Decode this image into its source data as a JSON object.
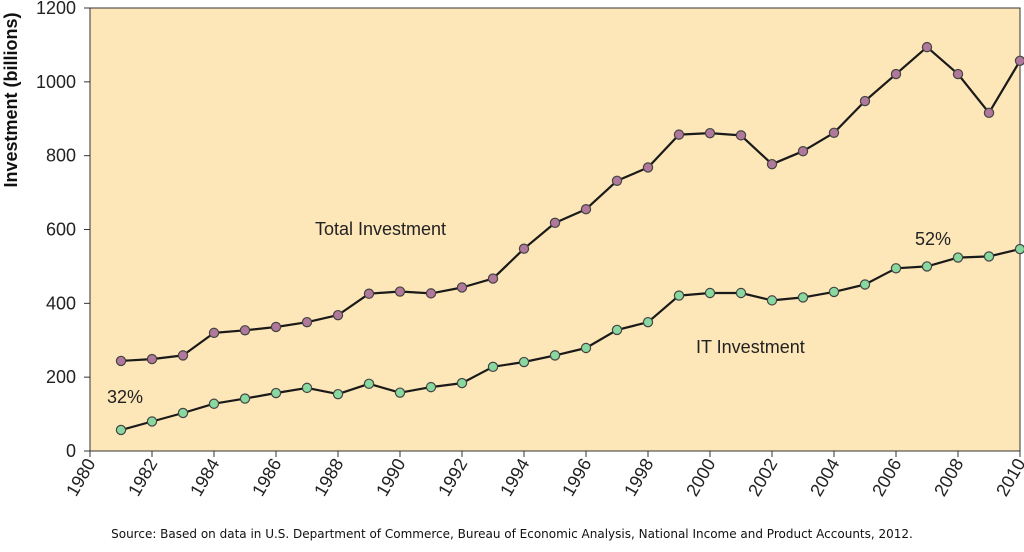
{
  "chart_data": {
    "type": "line",
    "ylabel": "Investment (billions)",
    "xlim": [
      1980,
      2010
    ],
    "ylim": [
      0,
      1200
    ],
    "x_ticks": [
      "1980",
      "1982",
      "1984",
      "1986",
      "1988",
      "1990",
      "1992",
      "1994",
      "1996",
      "1998",
      "2000",
      "2002",
      "2004",
      "2006",
      "2008",
      "2010"
    ],
    "y_ticks": [
      "0",
      "200",
      "400",
      "600",
      "800",
      "1000",
      "1200"
    ],
    "x": [
      1981,
      1982,
      1983,
      1984,
      1985,
      1986,
      1987,
      1988,
      1989,
      1990,
      1991,
      1992,
      1993,
      1994,
      1995,
      1996,
      1997,
      1998,
      1999,
      2000,
      2001,
      2002,
      2003,
      2004,
      2005,
      2006,
      2007,
      2008,
      2009,
      2010
    ],
    "series": [
      {
        "name": "Total Investment",
        "color": "#b0789a",
        "values": [
          244,
          249,
          259,
          320,
          327,
          336,
          349,
          368,
          426,
          432,
          427,
          443,
          467,
          548,
          618,
          655,
          732,
          768,
          857,
          861,
          855,
          777,
          812,
          862,
          948,
          1021,
          1094,
          1021,
          916,
          1057
        ]
      },
      {
        "name": "IT Investment",
        "color": "#88d8a0",
        "values": [
          57,
          80,
          103,
          128,
          142,
          157,
          171,
          154,
          182,
          158,
          173,
          184,
          228,
          241,
          259,
          279,
          328,
          349,
          421,
          428,
          428,
          408,
          416,
          431,
          451,
          495,
          500,
          524,
          527,
          547
        ]
      }
    ],
    "annotations": [
      {
        "text": "32%"
      },
      {
        "text": "52%"
      }
    ],
    "grid": false,
    "background_color": "#fde6b7"
  },
  "source_note": "Source: Based on data in U.S. Department of Commerce, Bureau of Economic Analysis, National Income and Product Accounts, 2012."
}
